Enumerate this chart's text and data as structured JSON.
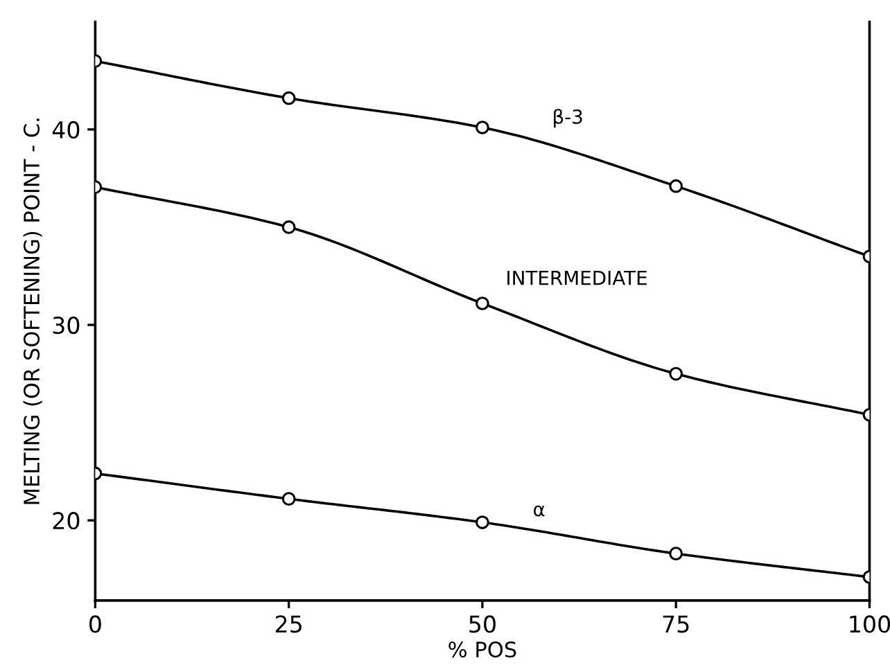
{
  "chart_data": {
    "type": "line",
    "xlabel": "% POS",
    "ylabel": "MELTING (OR SOFTENING) POINT - C.",
    "x": [
      0,
      25,
      50,
      75,
      100
    ],
    "series": [
      {
        "name": "β-3",
        "color": "#000000",
        "values": [
          43.5,
          41.6,
          40.1,
          37.1,
          33.5
        ]
      },
      {
        "name": "INTERMEDIATE",
        "color": "#000000",
        "values": [
          37.05,
          35.0,
          31.1,
          27.5,
          25.4
        ]
      },
      {
        "name": "α",
        "color": "#000000",
        "values": [
          22.4,
          21.1,
          19.9,
          18.3,
          17.1
        ]
      }
    ],
    "xlim": [
      0,
      100
    ],
    "ylim": [
      15.9,
      45.5
    ],
    "xticks": [
      0,
      25,
      50,
      75,
      100
    ],
    "yticks": [
      20,
      30,
      40
    ],
    "marker": "circle",
    "line_style": "solid",
    "grid": false,
    "legend": false
  }
}
